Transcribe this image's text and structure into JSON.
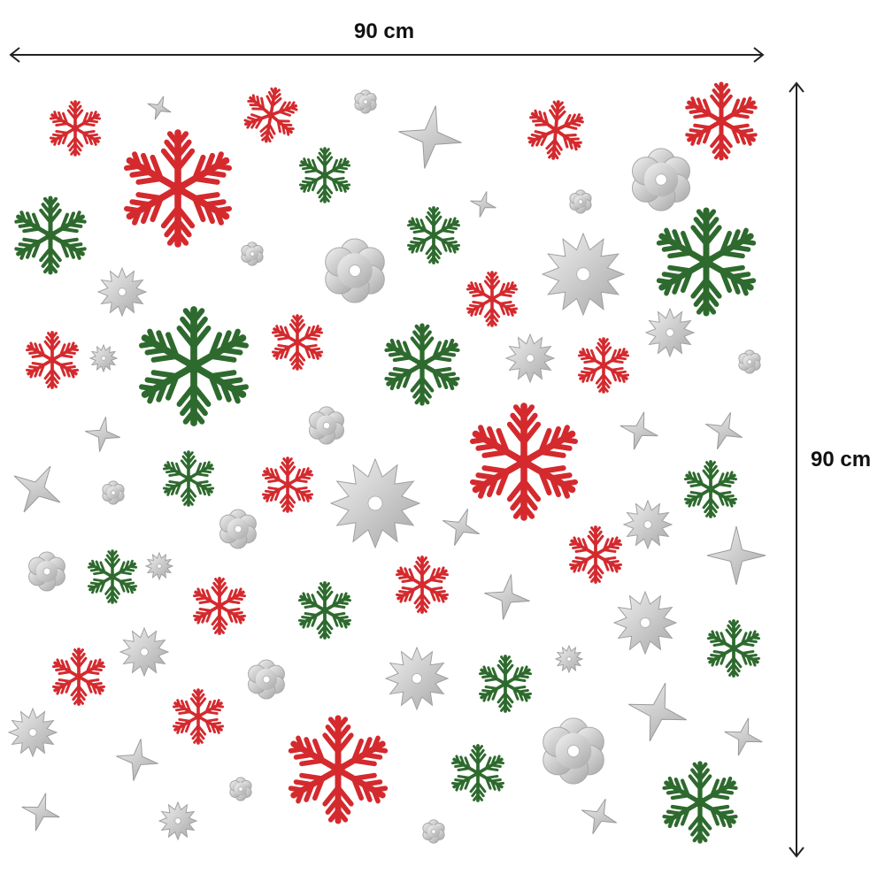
{
  "dimensions": {
    "width_label": "90 cm",
    "height_label": "90 cm"
  },
  "colors": {
    "red": "#d42a2e",
    "green": "#2e6a2e",
    "silver_light": "#f2f2f2",
    "silver_dark": "#a6a6a6",
    "arrow": "#222222"
  },
  "decals": {
    "icon_types": [
      "red-snowflake-icon",
      "green-snowflake-icon",
      "silver-star-icon",
      "silver-flower-icon",
      "silver-spiky-icon"
    ]
  }
}
